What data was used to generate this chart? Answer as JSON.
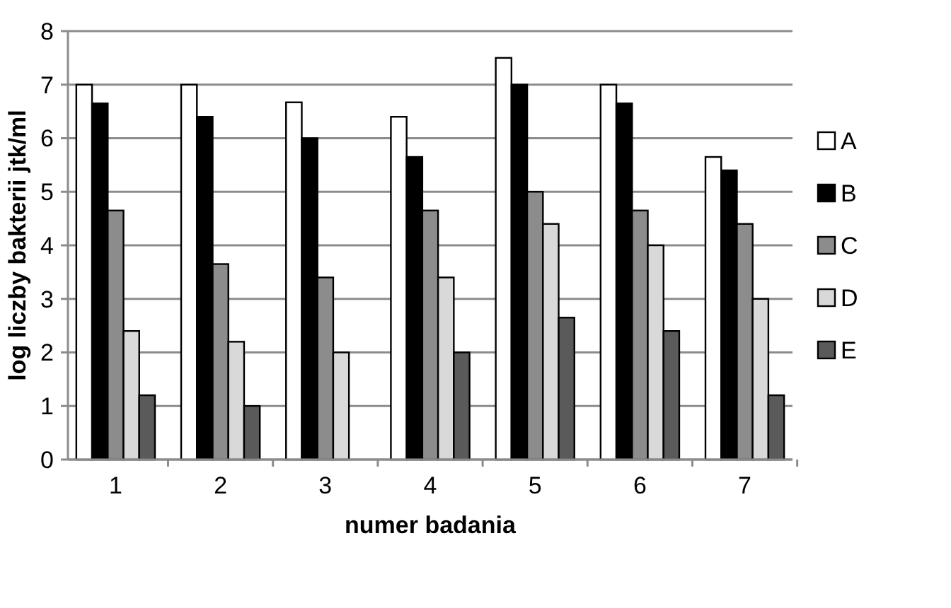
{
  "chart_data": {
    "type": "bar",
    "xlabel": "numer badania",
    "ylabel": "log liczby bakterii jtk/ml",
    "categories": [
      "1",
      "2",
      "3",
      "4",
      "5",
      "6",
      "7"
    ],
    "series": [
      {
        "name": "A",
        "color": "#ffffff",
        "values": [
          7,
          7,
          6.67,
          6.4,
          7.5,
          7,
          5.65
        ]
      },
      {
        "name": "B",
        "color": "#000000",
        "values": [
          6.65,
          6.4,
          6,
          5.65,
          7,
          6.65,
          5.4
        ]
      },
      {
        "name": "C",
        "color": "#8c8c8c",
        "values": [
          4.65,
          3.65,
          3.4,
          4.65,
          5,
          4.65,
          4.4
        ]
      },
      {
        "name": "D",
        "color": "#d9d9d9",
        "values": [
          2.4,
          2.2,
          2,
          3.4,
          4.4,
          4,
          3
        ]
      },
      {
        "name": "E",
        "color": "#5a5a5a",
        "values": [
          1.2,
          1,
          null,
          2,
          2.65,
          2.4,
          1.2
        ]
      }
    ],
    "ylim": [
      0,
      8
    ],
    "yticks": [
      0,
      1,
      2,
      3,
      4,
      5,
      6,
      7,
      8
    ],
    "grid": "y",
    "legend": "right"
  }
}
